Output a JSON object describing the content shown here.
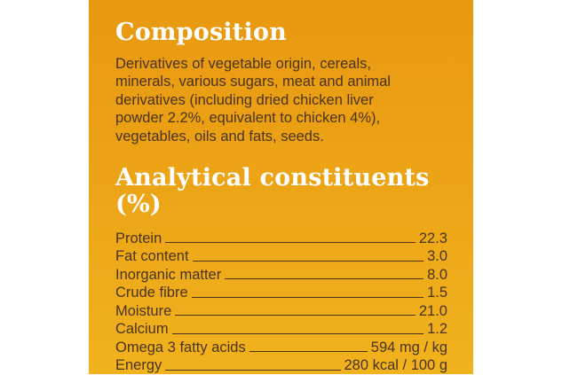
{
  "composition": {
    "title": "Composition",
    "lines": [
      "Derivatives of vegetable origin, cereals,",
      "minerals, various sugars, meat and animal",
      "derivatives (including dried chicken liver",
      "powder 2.2%, equivalent to chicken 4%),",
      "vegetables, oils and fats, seeds."
    ]
  },
  "analytical": {
    "title": "Analytical constituents (%)",
    "rows": [
      {
        "label": "Protein",
        "value": "22.3"
      },
      {
        "label": "Fat content",
        "value": "3.0"
      },
      {
        "label": "Inorganic matter",
        "value": "8.0"
      },
      {
        "label": "Crude fibre",
        "value": "1.5"
      },
      {
        "label": "Moisture",
        "value": "21.0"
      },
      {
        "label": "Calcium",
        "value": "1.2"
      },
      {
        "label": "Omega 3 fatty acids",
        "value": "594 mg / kg"
      },
      {
        "label": "Energy",
        "value": "280 kcal / 100 g"
      }
    ]
  }
}
